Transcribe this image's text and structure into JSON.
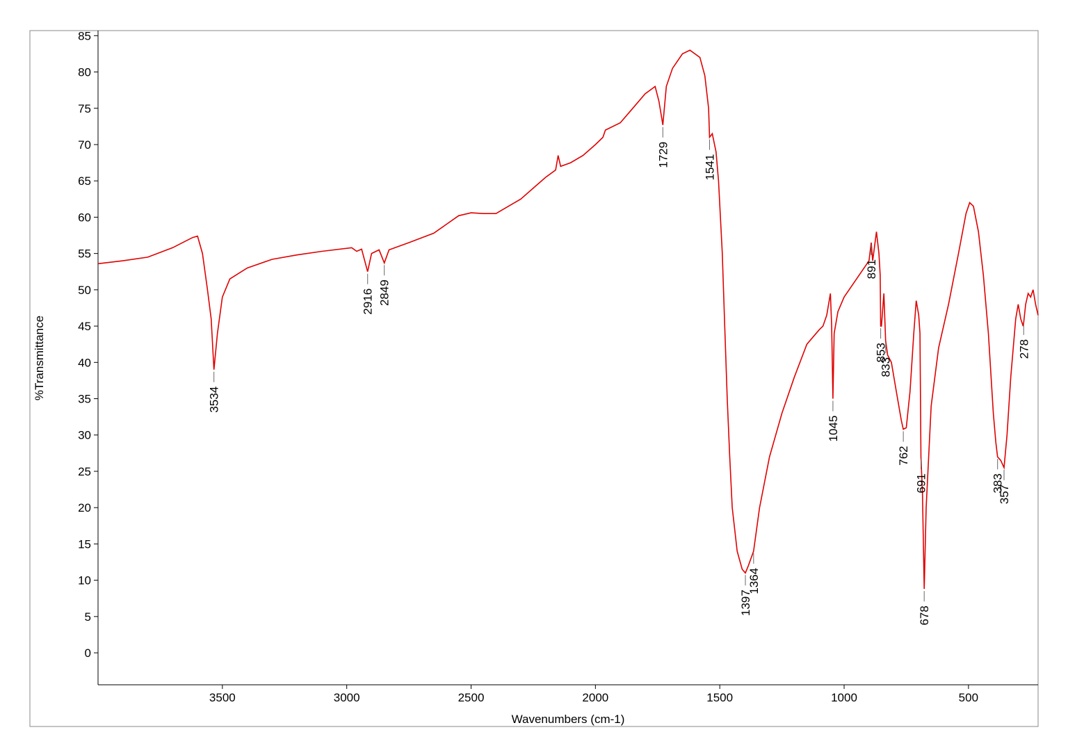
{
  "chart_data": {
    "type": "line",
    "xlabel": "Wavenumbers (cm-1)",
    "ylabel": "%Transmittance",
    "color": "#e00000",
    "xlim": [
      4000,
      220
    ],
    "ylim": [
      -4.4,
      85.7
    ],
    "xticks": [
      3500,
      3000,
      2500,
      2000,
      1500,
      1000,
      500
    ],
    "yticks": [
      0,
      5,
      10,
      15,
      20,
      25,
      30,
      35,
      40,
      45,
      50,
      55,
      60,
      65,
      70,
      75,
      80,
      85
    ],
    "x": [
      4000,
      3900,
      3800,
      3700,
      3620,
      3600,
      3580,
      3560,
      3545,
      3534,
      3520,
      3500,
      3470,
      3400,
      3300,
      3200,
      3100,
      2980,
      2960,
      2940,
      2916,
      2900,
      2870,
      2849,
      2830,
      2750,
      2650,
      2600,
      2550,
      2500,
      2450,
      2400,
      2350,
      2300,
      2250,
      2200,
      2160,
      2150,
      2140,
      2100,
      2050,
      2000,
      1970,
      1960,
      1900,
      1850,
      1800,
      1760,
      1745,
      1735,
      1729,
      1715,
      1690,
      1650,
      1620,
      1580,
      1560,
      1545,
      1541,
      1530,
      1515,
      1505,
      1490,
      1480,
      1470,
      1460,
      1450,
      1430,
      1410,
      1397,
      1385,
      1364,
      1340,
      1300,
      1250,
      1200,
      1150,
      1100,
      1085,
      1070,
      1055,
      1050,
      1045,
      1040,
      1025,
      1000,
      950,
      900,
      891,
      885,
      870,
      860,
      855,
      853,
      850,
      840,
      833,
      825,
      810,
      790,
      770,
      762,
      750,
      735,
      720,
      710,
      700,
      695,
      691,
      685,
      678,
      670,
      650,
      620,
      580,
      540,
      510,
      495,
      480,
      460,
      440,
      420,
      400,
      390,
      383,
      370,
      357,
      345,
      330,
      310,
      300,
      290,
      280,
      278,
      270,
      260,
      250,
      240,
      230,
      220
    ],
    "values": [
      53.6,
      54.0,
      54.5,
      55.8,
      57.2,
      57.4,
      55,
      50,
      46,
      39,
      44,
      49,
      51.5,
      53,
      54.2,
      54.8,
      55.3,
      55.8,
      55.3,
      55.6,
      52.5,
      55,
      55.5,
      53.7,
      55.5,
      56.5,
      57.8,
      59,
      60.2,
      60.6,
      60.5,
      60.5,
      61.5,
      62.5,
      64,
      65.5,
      66.5,
      68.5,
      67,
      67.5,
      68.5,
      70,
      71,
      72,
      73,
      75,
      77,
      78,
      76,
      74,
      72.7,
      78,
      80.5,
      82.5,
      83,
      82,
      79.5,
      75,
      71,
      71.5,
      69,
      65,
      55,
      45,
      35,
      27,
      20,
      14,
      11.5,
      11,
      12,
      14,
      20,
      27,
      33,
      38,
      42.5,
      44.5,
      45,
      46.5,
      49.5,
      45,
      35,
      44,
      47,
      49,
      51.5,
      54,
      56.5,
      54,
      58,
      55,
      52,
      45,
      45,
      49.5,
      43,
      41,
      40,
      36,
      32,
      30.8,
      31,
      36,
      44,
      48.5,
      46.5,
      44,
      27,
      22,
      8.8,
      20,
      34,
      42,
      48,
      55,
      60.5,
      62,
      61.5,
      58,
      52,
      44,
      33,
      29,
      27,
      26.5,
      25.5,
      30,
      38,
      46,
      48,
      46,
      45,
      45.5,
      48,
      49.5,
      49,
      50,
      48,
      46.5
    ],
    "peaks": [
      3534,
      2916,
      2849,
      1729,
      1541,
      1397,
      1364,
      1045,
      891,
      853,
      833,
      762,
      691,
      678,
      383,
      357,
      278
    ]
  }
}
